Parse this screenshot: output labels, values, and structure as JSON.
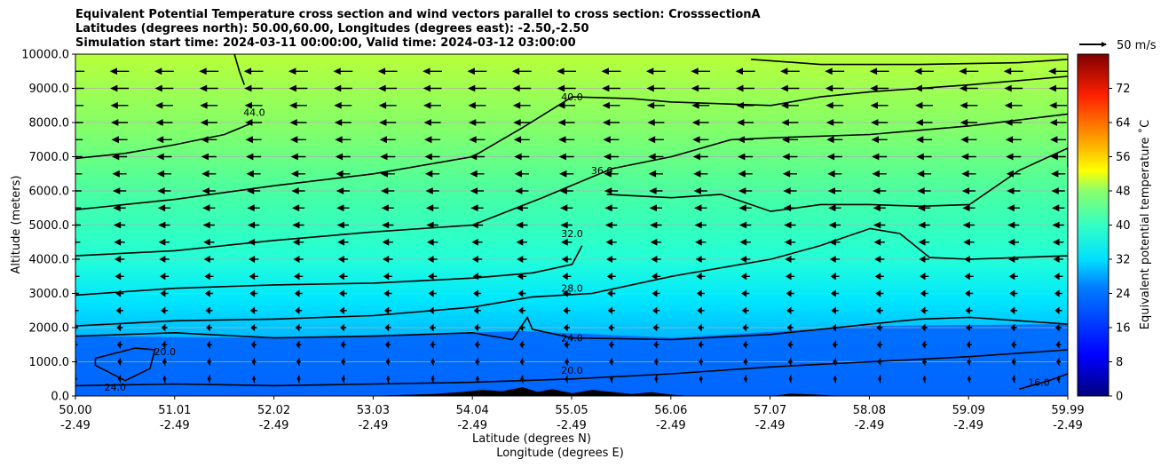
{
  "chart_data": {
    "type": "contourf",
    "title": [
      "Equivalent Potential Temperature cross section and wind vectors parallel to cross section: CrosssectionA",
      "Latitudes (degrees north): 50.00,60.00, Longitudes (degrees east): -2.50,-2.50",
      "Simulation start time: 2024-03-11 00:00:00, Valid time: 2024-03-12 03:00:00"
    ],
    "ylabel": "Altitude (meters)",
    "xlabel": "Latitude (degrees N)",
    "xlabel2": "Longitude (degrees E)",
    "ylim": [
      0,
      10000
    ],
    "y_ticks": [
      "0.0",
      "1000.0",
      "2000.0",
      "3000.0",
      "4000.0",
      "5000.0",
      "6000.0",
      "7000.0",
      "8000.0",
      "9000.0",
      "10000.0"
    ],
    "x_ticks_lat": [
      "50.00",
      "51.01",
      "52.02",
      "53.03",
      "54.04",
      "55.05",
      "56.06",
      "57.07",
      "58.08",
      "59.09",
      "59.99"
    ],
    "x_ticks_lon": [
      "-2.49",
      "-2.49",
      "-2.49",
      "-2.49",
      "-2.49",
      "-2.49",
      "-2.49",
      "-2.49",
      "-2.49",
      "-2.49",
      "-2.49"
    ],
    "grid": true,
    "colorbar": {
      "label": "Equivalent potential temperature ˚C",
      "range": [
        0,
        80
      ],
      "ticks": [
        "0",
        "8",
        "16",
        "24",
        "32",
        "40",
        "48",
        "56",
        "64",
        "72"
      ]
    },
    "quiver_key": "50 m/s",
    "contour_levels": [
      16,
      20,
      24,
      28,
      32,
      36,
      40,
      44
    ],
    "contour_labels": [
      {
        "text": "44.0",
        "lat": 51.8,
        "alt": 8200
      },
      {
        "text": "40.0",
        "lat": 55.0,
        "alt": 8650
      },
      {
        "text": "36.0",
        "lat": 55.3,
        "alt": 6500
      },
      {
        "text": "32.0",
        "lat": 55.0,
        "alt": 4650
      },
      {
        "text": "28.0",
        "lat": 55.0,
        "alt": 3050
      },
      {
        "text": "24.0",
        "lat": 55.0,
        "alt": 1600
      },
      {
        "text": "20.0",
        "lat": 50.9,
        "alt": 1200
      },
      {
        "text": "20.0",
        "lat": 55.0,
        "alt": 650
      },
      {
        "text": "16.0",
        "lat": 59.7,
        "alt": 300
      },
      {
        "text": "24.0",
        "lat": 50.4,
        "alt": 150
      }
    ],
    "contour_lines": [
      {
        "level": 44,
        "points": [
          [
            50.0,
            6950
          ],
          [
            50.5,
            7100
          ],
          [
            51.0,
            7350
          ],
          [
            51.5,
            7650
          ],
          [
            51.75,
            7950
          ]
        ]
      },
      {
        "level": 44,
        "points": [
          [
            51.7,
            9100
          ],
          [
            51.65,
            9500
          ],
          [
            51.6,
            10000
          ]
        ]
      },
      {
        "level": 40,
        "points": [
          [
            50.0,
            5450
          ],
          [
            51.0,
            5750
          ],
          [
            52.0,
            6150
          ],
          [
            53.0,
            6500
          ],
          [
            54.0,
            7000
          ],
          [
            54.5,
            7850
          ],
          [
            55.0,
            8750
          ],
          [
            55.6,
            8700
          ],
          [
            56.0,
            8600
          ],
          [
            57.0,
            8500
          ],
          [
            57.5,
            8750
          ],
          [
            58.0,
            8900
          ],
          [
            59.0,
            9100
          ],
          [
            59.99,
            9350
          ]
        ]
      },
      {
        "level": 40,
        "points": [
          [
            56.8,
            9850
          ],
          [
            57.5,
            9700
          ],
          [
            58.5,
            9700
          ],
          [
            59.5,
            9750
          ],
          [
            59.99,
            9850
          ]
        ]
      },
      {
        "level": 36,
        "points": [
          [
            50.0,
            4100
          ],
          [
            51.0,
            4250
          ],
          [
            52.0,
            4550
          ],
          [
            53.0,
            4800
          ],
          [
            54.0,
            5000
          ],
          [
            54.7,
            5800
          ],
          [
            55.4,
            6650
          ],
          [
            56.0,
            7000
          ],
          [
            56.6,
            7500
          ],
          [
            57.0,
            7550
          ],
          [
            58.0,
            7650
          ],
          [
            59.0,
            7900
          ],
          [
            59.99,
            8250
          ]
        ]
      },
      {
        "level": 32,
        "points": [
          [
            50.0,
            2950
          ],
          [
            51.0,
            3150
          ],
          [
            52.0,
            3250
          ],
          [
            53.0,
            3300
          ],
          [
            54.0,
            3450
          ],
          [
            54.6,
            3600
          ],
          [
            55.0,
            3850
          ],
          [
            55.1,
            4400
          ]
        ]
      },
      {
        "level": 32,
        "points": [
          [
            55.35,
            5900
          ],
          [
            56.0,
            5800
          ],
          [
            56.5,
            5900
          ],
          [
            57.0,
            5400
          ],
          [
            57.5,
            5600
          ],
          [
            58.0,
            5600
          ],
          [
            58.5,
            5550
          ],
          [
            59.0,
            5600
          ],
          [
            59.5,
            6600
          ],
          [
            59.99,
            7250
          ],
          [
            59.99,
            6700
          ]
        ]
      },
      {
        "level": 28,
        "points": [
          [
            50.0,
            2050
          ],
          [
            51.0,
            2200
          ],
          [
            52.0,
            2250
          ],
          [
            53.0,
            2350
          ],
          [
            54.0,
            2600
          ],
          [
            54.6,
            2900
          ],
          [
            55.2,
            3000
          ],
          [
            56.0,
            3500
          ],
          [
            57.0,
            4000
          ],
          [
            57.5,
            4400
          ],
          [
            58.0,
            4900
          ],
          [
            58.3,
            4750
          ],
          [
            58.6,
            4050
          ],
          [
            59.0,
            4000
          ],
          [
            59.99,
            4100
          ]
        ]
      },
      {
        "level": 24,
        "points": [
          [
            50.0,
            1750
          ],
          [
            51.0,
            1850
          ],
          [
            52.0,
            1700
          ],
          [
            53.0,
            1750
          ],
          [
            54.0,
            1850
          ],
          [
            54.4,
            1650
          ],
          [
            54.55,
            2300
          ],
          [
            54.6,
            1950
          ],
          [
            55.0,
            1700
          ],
          [
            56.0,
            1650
          ],
          [
            57.0,
            1800
          ],
          [
            58.0,
            2100
          ],
          [
            58.5,
            2250
          ],
          [
            59.0,
            2300
          ],
          [
            59.99,
            2100
          ]
        ]
      },
      {
        "level": 20,
        "points": [
          [
            50.2,
            1100
          ],
          [
            50.6,
            1400
          ],
          [
            50.8,
            1350
          ],
          [
            50.75,
            800
          ],
          [
            50.5,
            450
          ],
          [
            50.2,
            900
          ],
          [
            50.2,
            1100
          ]
        ]
      },
      {
        "level": 20,
        "points": [
          [
            50.0,
            300
          ],
          [
            51.0,
            350
          ],
          [
            52.0,
            300
          ],
          [
            53.0,
            350
          ],
          [
            54.0,
            400
          ],
          [
            55.0,
            500
          ],
          [
            56.0,
            650
          ],
          [
            57.0,
            850
          ],
          [
            58.0,
            1000
          ],
          [
            59.0,
            1150
          ],
          [
            59.99,
            1350
          ]
        ]
      },
      {
        "level": 16,
        "points": [
          [
            59.5,
            200
          ],
          [
            59.8,
            450
          ],
          [
            59.99,
            650
          ]
        ]
      }
    ],
    "filled_levels": [
      {
        "min": 20,
        "max": 24,
        "lower": [
          [
            50.0,
            0
          ],
          [
            59.99,
            0
          ]
        ],
        "upper": [
          [
            50.0,
            1750
          ],
          [
            52.0,
            1700
          ],
          [
            54.5,
            1900
          ],
          [
            56.0,
            1700
          ],
          [
            58.0,
            2050
          ],
          [
            59.99,
            2100
          ]
        ]
      }
    ],
    "wind_field": {
      "rows_alt": [
        9500,
        9000,
        8500,
        8000,
        7500,
        7000,
        6500,
        6000,
        5500,
        5000,
        4500,
        4000,
        3500,
        3000,
        2500,
        2000,
        1500,
        1000,
        500
      ],
      "cols_lat": [
        50.0,
        50.45,
        50.9,
        51.35,
        51.8,
        52.25,
        52.7,
        53.15,
        53.6,
        54.05,
        54.5,
        54.95,
        55.4,
        55.85,
        56.3,
        56.75,
        57.2,
        57.65,
        58.1,
        58.55,
        59.0,
        59.45,
        59.9
      ],
      "u_top_ms": 28,
      "u_decay_per_km": 2.6
    }
  }
}
